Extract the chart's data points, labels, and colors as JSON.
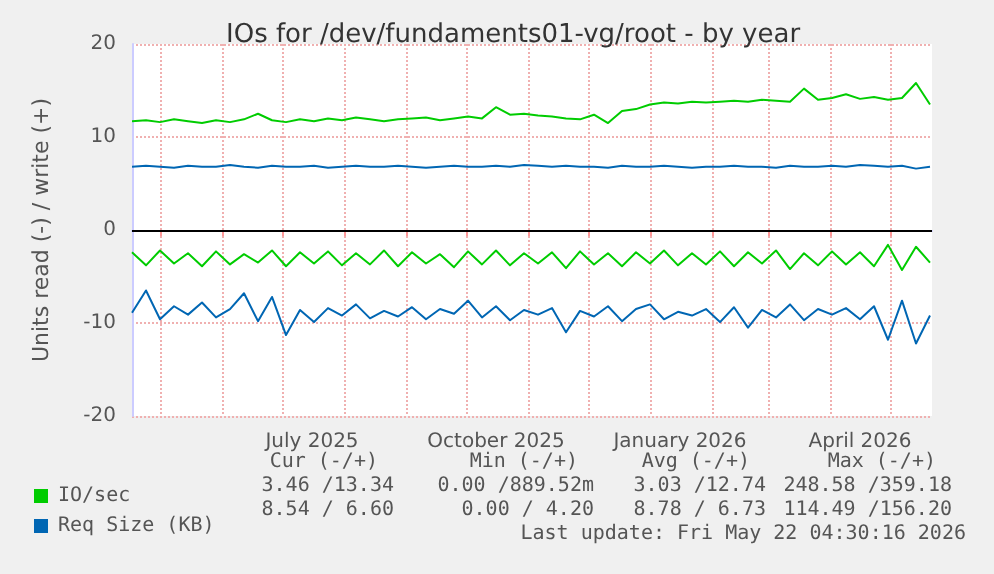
{
  "chart_data": {
    "type": "line",
    "title": "IOs for /dev/fundaments01-vg/root - by year",
    "ylabel": "Units read (-) / write (+)",
    "x": [
      "2025-04-17",
      "2025-04-24",
      "2025-05-01",
      "2025-05-08",
      "2025-05-15",
      "2025-05-22",
      "2025-05-29",
      "2025-06-05",
      "2025-06-12",
      "2025-06-19",
      "2025-06-26",
      "2025-07-03",
      "2025-07-10",
      "2025-07-17",
      "2025-07-24",
      "2025-07-31",
      "2025-08-07",
      "2025-08-14",
      "2025-08-21",
      "2025-08-28",
      "2025-09-04",
      "2025-09-11",
      "2025-09-18",
      "2025-09-25",
      "2025-10-02",
      "2025-10-09",
      "2025-10-16",
      "2025-10-23",
      "2025-10-30",
      "2025-11-06",
      "2025-11-13",
      "2025-11-20",
      "2025-11-27",
      "2025-12-04",
      "2025-12-11",
      "2025-12-18",
      "2025-12-25",
      "2026-01-01",
      "2026-01-08",
      "2026-01-15",
      "2026-01-22",
      "2026-01-29",
      "2026-02-05",
      "2026-02-12",
      "2026-02-19",
      "2026-02-26",
      "2026-03-05",
      "2026-03-12",
      "2026-03-19",
      "2026-03-26",
      "2026-04-02",
      "2026-04-09",
      "2026-04-16",
      "2026-04-23",
      "2026-04-30",
      "2026-05-07",
      "2026-05-14",
      "2026-05-21"
    ],
    "series": [
      {
        "name": "IO/sec",
        "color": "#00cc00",
        "values": [
          11.7,
          11.8,
          11.6,
          11.9,
          11.7,
          11.5,
          11.8,
          11.6,
          11.9,
          12.5,
          11.8,
          11.6,
          11.9,
          11.7,
          12.0,
          11.8,
          12.1,
          11.9,
          11.7,
          11.9,
          12.0,
          12.1,
          11.8,
          12.0,
          12.2,
          12.0,
          13.2,
          12.4,
          12.5,
          12.3,
          12.2,
          12.0,
          11.9,
          12.4,
          11.5,
          12.8,
          13.0,
          13.5,
          13.7,
          13.6,
          13.8,
          13.7,
          13.8,
          13.9,
          13.8,
          14.0,
          13.9,
          13.8,
          15.2,
          14.0,
          14.2,
          14.6,
          14.1,
          14.3,
          14.0,
          14.2,
          15.8,
          13.5
        ]
      },
      {
        "color": "#00cc00",
        "values": [
          -2.4,
          -3.8,
          -2.2,
          -3.6,
          -2.5,
          -3.9,
          -2.3,
          -3.7,
          -2.6,
          -3.5,
          -2.2,
          -3.9,
          -2.4,
          -3.6,
          -2.3,
          -3.8,
          -2.5,
          -3.7,
          -2.2,
          -3.9,
          -2.4,
          -3.6,
          -2.6,
          -4.0,
          -2.3,
          -3.7,
          -2.2,
          -3.8,
          -2.5,
          -3.6,
          -2.4,
          -4.1,
          -2.3,
          -3.7,
          -2.5,
          -3.9,
          -2.4,
          -3.6,
          -2.2,
          -3.8,
          -2.5,
          -3.7,
          -2.3,
          -3.9,
          -2.4,
          -3.6,
          -2.2,
          -4.2,
          -2.5,
          -3.8,
          -2.3,
          -3.7,
          -2.4,
          -3.9,
          -1.6,
          -4.3,
          -1.8,
          -3.5
        ]
      },
      {
        "name": "Req Size (KB)",
        "color": "#0066b3",
        "values": [
          6.8,
          6.9,
          6.8,
          6.7,
          6.9,
          6.8,
          6.8,
          7.0,
          6.8,
          6.7,
          6.9,
          6.8,
          6.8,
          6.9,
          6.7,
          6.8,
          6.9,
          6.8,
          6.8,
          6.9,
          6.8,
          6.7,
          6.8,
          6.9,
          6.8,
          6.8,
          6.9,
          6.8,
          7.0,
          6.9,
          6.8,
          6.9,
          6.8,
          6.8,
          6.7,
          6.9,
          6.8,
          6.8,
          6.9,
          6.8,
          6.7,
          6.8,
          6.8,
          6.9,
          6.8,
          6.8,
          6.7,
          6.9,
          6.8,
          6.8,
          6.9,
          6.8,
          7.0,
          6.9,
          6.8,
          6.9,
          6.6,
          6.8
        ]
      },
      {
        "color": "#0066b3",
        "values": [
          -8.9,
          -6.5,
          -9.6,
          -8.2,
          -9.1,
          -7.8,
          -9.4,
          -8.5,
          -6.8,
          -9.8,
          -7.2,
          -11.3,
          -8.6,
          -9.9,
          -8.4,
          -9.2,
          -8.0,
          -9.5,
          -8.7,
          -9.3,
          -8.3,
          -9.6,
          -8.5,
          -9.0,
          -7.6,
          -9.4,
          -8.2,
          -9.7,
          -8.6,
          -9.1,
          -8.4,
          -11.0,
          -8.7,
          -9.3,
          -8.2,
          -9.8,
          -8.5,
          -8.0,
          -9.6,
          -8.8,
          -9.2,
          -8.5,
          -9.9,
          -8.3,
          -10.5,
          -8.6,
          -9.4,
          -8.0,
          -9.7,
          -8.5,
          -9.1,
          -8.4,
          -9.6,
          -8.2,
          -11.8,
          -7.6,
          -12.2,
          -9.2
        ]
      }
    ],
    "xlim": [
      "2025-04-17",
      "2026-05-22"
    ],
    "xticks": [
      {
        "value": "2025-05-01",
        "label": null
      },
      {
        "value": "2025-06-01",
        "label": null
      },
      {
        "value": "2025-07-01",
        "label": null
      },
      {
        "value": "2025-07-16",
        "label": "July 2025"
      },
      {
        "value": "2025-08-01",
        "label": null
      },
      {
        "value": "2025-09-01",
        "label": null
      },
      {
        "value": "2025-10-01",
        "label": null
      },
      {
        "value": "2025-10-16",
        "label": "October 2025"
      },
      {
        "value": "2025-11-01",
        "label": null
      },
      {
        "value": "2025-12-01",
        "label": null
      },
      {
        "value": "2026-01-01",
        "label": null
      },
      {
        "value": "2026-01-16",
        "label": "January 2026"
      },
      {
        "value": "2026-02-01",
        "label": null
      },
      {
        "value": "2026-03-01",
        "label": null
      },
      {
        "value": "2026-04-01",
        "label": null
      },
      {
        "value": "2026-04-16",
        "label": "April 2026"
      },
      {
        "value": "2026-05-01",
        "label": null
      }
    ],
    "ylim": [
      -20,
      20
    ],
    "yticks": [
      -20,
      -10,
      0,
      10,
      20
    ],
    "ref_lines": [
      {
        "axis": "y",
        "value": 0,
        "color": "#000000"
      }
    ],
    "grid": true,
    "legend": "bottom left",
    "marker": "none",
    "line_style": "solid",
    "annotations": [
      "Cur (-/+)",
      "Min (-/+)",
      "Avg (-/+)",
      "Max (-/+)",
      "3.46 /13.34",
      "0.00 /889.52m",
      "3.03 /12.74",
      "248.58 /359.18",
      "8.54 / 6.60",
      "0.00 / 4.20",
      "8.78 / 6.73",
      "114.49 /156.20",
      "Last update: Fri May 22 04:30:16 2026"
    ]
  }
}
